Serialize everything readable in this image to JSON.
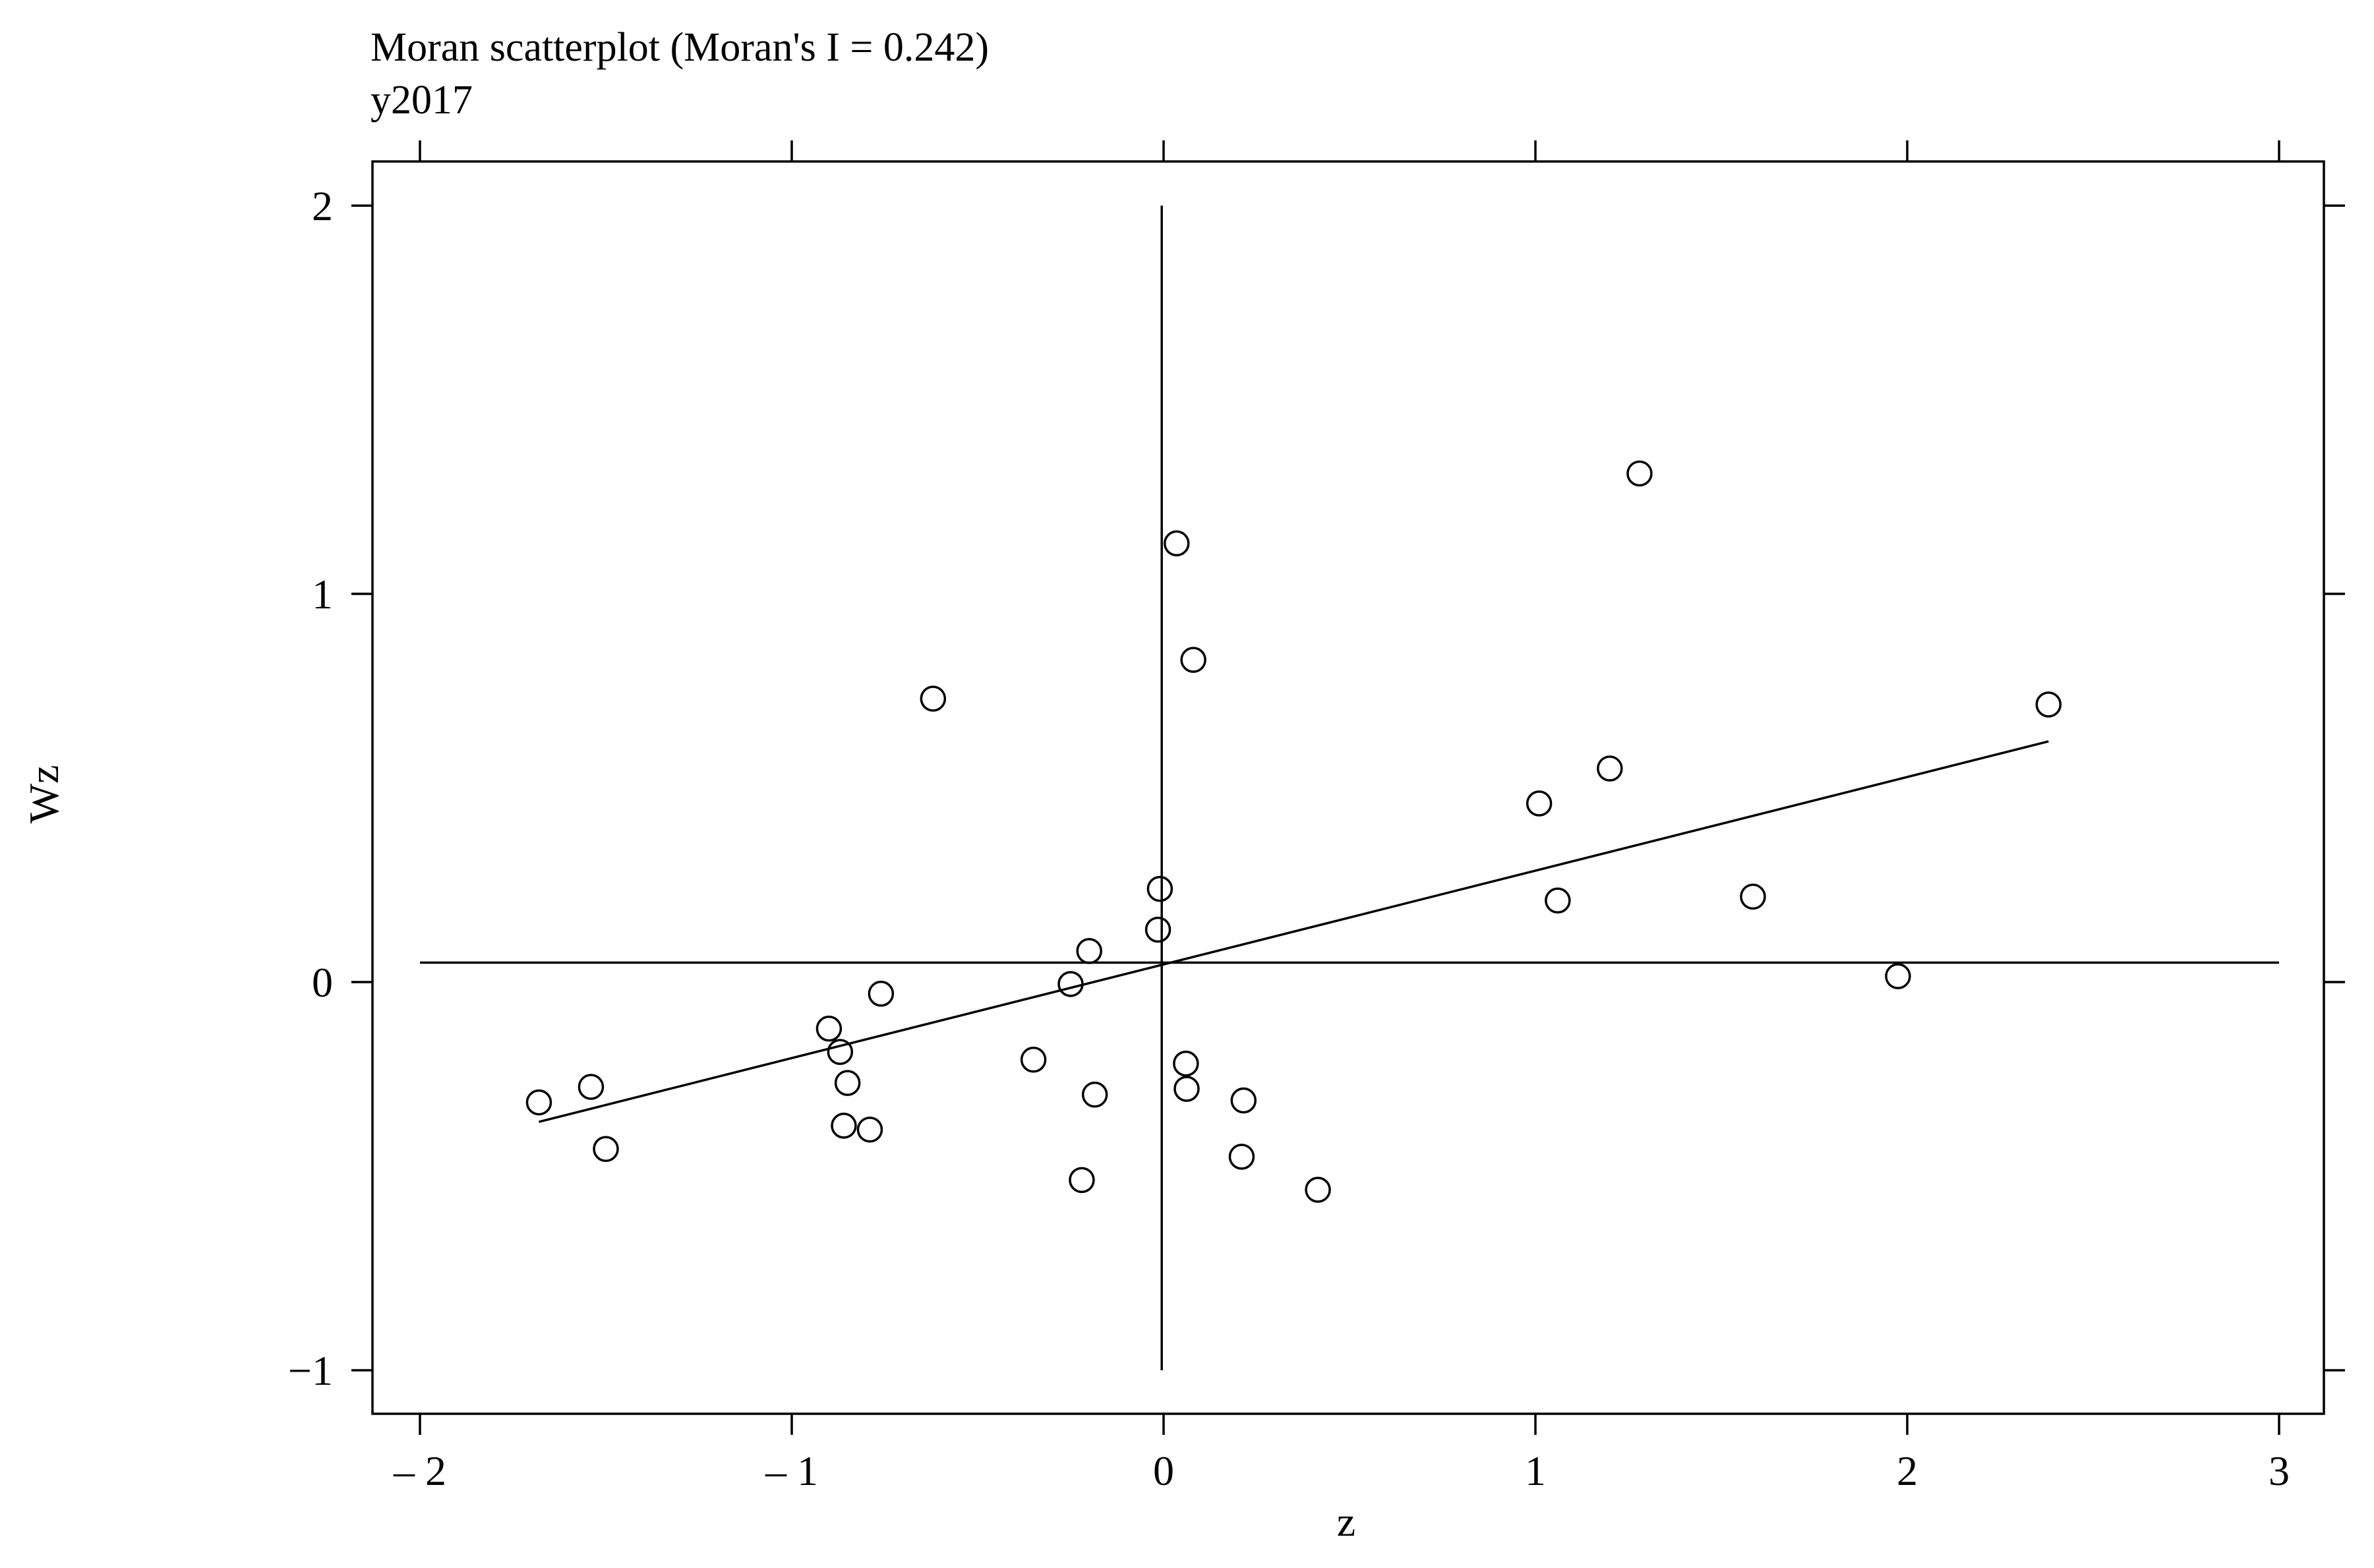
{
  "chart_data": {
    "type": "scatter",
    "title": "Moran scatterplot (Moran's I = 0.242)",
    "subtitle": "y2017",
    "xlabel": "z",
    "ylabel": "Wz",
    "xlim": [
      -2.12,
      3.12
    ],
    "ylim": [
      -1.12,
      2.12
    ],
    "x_ticks": [
      -2,
      -1,
      0,
      1,
      2,
      3
    ],
    "x_tick_labels": [
      "– 2",
      "– 1",
      "0",
      "1",
      "2",
      "3"
    ],
    "y_ticks": [
      -1,
      0,
      1,
      2
    ],
    "y_tick_labels": [
      "−1",
      "0",
      "1",
      "2"
    ],
    "x_ticks_top": [
      -2,
      -1,
      0,
      1,
      2,
      3
    ],
    "y_ticks_right": [
      -1,
      0,
      1,
      2
    ],
    "grid": false,
    "vertical_reference_line": {
      "x": -0.005,
      "y_from": -1.0,
      "y_to": 2.0
    },
    "horizontal_reference_line": {
      "y": 0.05,
      "x_from": -2.0,
      "x_to": 3.0
    },
    "regression_line": {
      "x": [
        -1.68,
        2.38
      ],
      "y": [
        -0.36,
        0.62
      ]
    },
    "points": [
      {
        "x": -1.68,
        "y": -0.31
      },
      {
        "x": -1.54,
        "y": -0.27
      },
      {
        "x": -1.5,
        "y": -0.43
      },
      {
        "x": -0.9,
        "y": -0.12
      },
      {
        "x": -0.87,
        "y": -0.18
      },
      {
        "x": -0.86,
        "y": -0.37
      },
      {
        "x": -0.85,
        "y": -0.26
      },
      {
        "x": -0.79,
        "y": -0.38
      },
      {
        "x": -0.76,
        "y": -0.03
      },
      {
        "x": -0.62,
        "y": 0.73
      },
      {
        "x": -0.35,
        "y": -0.2
      },
      {
        "x": -0.25,
        "y": -0.005
      },
      {
        "x": -0.22,
        "y": -0.51
      },
      {
        "x": -0.2,
        "y": 0.08
      },
      {
        "x": -0.185,
        "y": -0.29
      },
      {
        "x": -0.015,
        "y": 0.135
      },
      {
        "x": -0.01,
        "y": 0.24
      },
      {
        "x": 0.035,
        "y": 1.13
      },
      {
        "x": 0.06,
        "y": -0.21
      },
      {
        "x": 0.062,
        "y": -0.275
      },
      {
        "x": 0.08,
        "y": 0.83
      },
      {
        "x": 0.21,
        "y": -0.45
      },
      {
        "x": 0.215,
        "y": -0.305
      },
      {
        "x": 0.415,
        "y": -0.535
      },
      {
        "x": 1.01,
        "y": 0.46
      },
      {
        "x": 1.06,
        "y": 0.21
      },
      {
        "x": 1.2,
        "y": 0.55
      },
      {
        "x": 1.28,
        "y": 1.31
      },
      {
        "x": 1.585,
        "y": 0.22
      },
      {
        "x": 1.975,
        "y": 0.015
      },
      {
        "x": 2.38,
        "y": 0.715
      }
    ]
  }
}
